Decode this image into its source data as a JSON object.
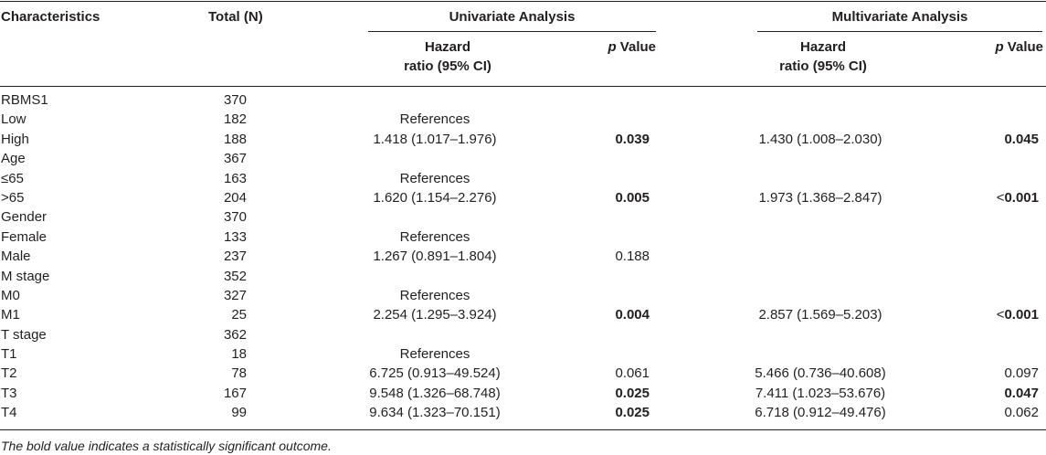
{
  "table": {
    "headers": {
      "characteristics": "Characteristics",
      "total": "Total (N)",
      "univariate": "Univariate Analysis",
      "multivariate": "Multivariate Analysis",
      "hazard_line1": "Hazard",
      "hazard_line2": "ratio (95% CI)",
      "p_label": "p",
      "value_label": " Value"
    },
    "rows": [
      {
        "characteristic": "RBMS1",
        "total": "370",
        "uni_hr": "",
        "uni_p": "",
        "uni_p_bold": false,
        "multi_hr": "",
        "multi_p_prefix": "",
        "multi_p": "",
        "multi_p_bold": false
      },
      {
        "characteristic": "Low",
        "total": "182",
        "uni_hr": "References",
        "uni_p": "",
        "uni_p_bold": false,
        "multi_hr": "",
        "multi_p_prefix": "",
        "multi_p": "",
        "multi_p_bold": false
      },
      {
        "characteristic": "High",
        "total": "188",
        "uni_hr": "1.418 (1.017–1.976)",
        "uni_p": "0.039",
        "uni_p_bold": true,
        "multi_hr": "1.430 (1.008–2.030)",
        "multi_p_prefix": "",
        "multi_p": "0.045",
        "multi_p_bold": true
      },
      {
        "characteristic": "Age",
        "total": "367",
        "uni_hr": "",
        "uni_p": "",
        "uni_p_bold": false,
        "multi_hr": "",
        "multi_p_prefix": "",
        "multi_p": "",
        "multi_p_bold": false
      },
      {
        "characteristic": "≤65",
        "total": "163",
        "uni_hr": "References",
        "uni_p": "",
        "uni_p_bold": false,
        "multi_hr": "",
        "multi_p_prefix": "",
        "multi_p": "",
        "multi_p_bold": false
      },
      {
        "characteristic": ">65",
        "total": "204",
        "uni_hr": "1.620 (1.154–2.276)",
        "uni_p": "0.005",
        "uni_p_bold": true,
        "multi_hr": "1.973 (1.368–2.847)",
        "multi_p_prefix": "<",
        "multi_p": "0.001",
        "multi_p_bold": true
      },
      {
        "characteristic": "Gender",
        "total": "370",
        "uni_hr": "",
        "uni_p": "",
        "uni_p_bold": false,
        "multi_hr": "",
        "multi_p_prefix": "",
        "multi_p": "",
        "multi_p_bold": false
      },
      {
        "characteristic": "Female",
        "total": "133",
        "uni_hr": "References",
        "uni_p": "",
        "uni_p_bold": false,
        "multi_hr": "",
        "multi_p_prefix": "",
        "multi_p": "",
        "multi_p_bold": false
      },
      {
        "characteristic": "Male",
        "total": "237",
        "uni_hr": "1.267 (0.891–1.804)",
        "uni_p": "0.188",
        "uni_p_bold": false,
        "multi_hr": "",
        "multi_p_prefix": "",
        "multi_p": "",
        "multi_p_bold": false
      },
      {
        "characteristic": "M stage",
        "total": "352",
        "uni_hr": "",
        "uni_p": "",
        "uni_p_bold": false,
        "multi_hr": "",
        "multi_p_prefix": "",
        "multi_p": "",
        "multi_p_bold": false
      },
      {
        "characteristic": "M0",
        "total": "327",
        "uni_hr": "References",
        "uni_p": "",
        "uni_p_bold": false,
        "multi_hr": "",
        "multi_p_prefix": "",
        "multi_p": "",
        "multi_p_bold": false
      },
      {
        "characteristic": "M1",
        "total": "25",
        "uni_hr": "2.254 (1.295–3.924)",
        "uni_p": "0.004",
        "uni_p_bold": true,
        "multi_hr": "2.857 (1.569–5.203)",
        "multi_p_prefix": "<",
        "multi_p": "0.001",
        "multi_p_bold": true
      },
      {
        "characteristic": "T stage",
        "total": "362",
        "uni_hr": "",
        "uni_p": "",
        "uni_p_bold": false,
        "multi_hr": "",
        "multi_p_prefix": "",
        "multi_p": "",
        "multi_p_bold": false
      },
      {
        "characteristic": "T1",
        "total": "18",
        "uni_hr": "References",
        "uni_p": "",
        "uni_p_bold": false,
        "multi_hr": "",
        "multi_p_prefix": "",
        "multi_p": "",
        "multi_p_bold": false
      },
      {
        "characteristic": "T2",
        "total": "78",
        "uni_hr": "6.725 (0.913–49.524)",
        "uni_p": "0.061",
        "uni_p_bold": false,
        "multi_hr": "5.466 (0.736–40.608)",
        "multi_p_prefix": "",
        "multi_p": "0.097",
        "multi_p_bold": false
      },
      {
        "characteristic": "T3",
        "total": "167",
        "uni_hr": "9.548 (1.326–68.748)",
        "uni_p": "0.025",
        "uni_p_bold": true,
        "multi_hr": "7.411 (1.023–53.676)",
        "multi_p_prefix": "",
        "multi_p": "0.047",
        "multi_p_bold": true
      },
      {
        "characteristic": "T4",
        "total": "99",
        "uni_hr": "9.634 (1.323–70.151)",
        "uni_p": "0.025",
        "uni_p_bold": true,
        "multi_hr": "6.718 (0.912–49.476)",
        "multi_p_prefix": "",
        "multi_p": "0.062",
        "multi_p_bold": false
      }
    ]
  },
  "footnote": "The bold value indicates a statistically significant outcome."
}
